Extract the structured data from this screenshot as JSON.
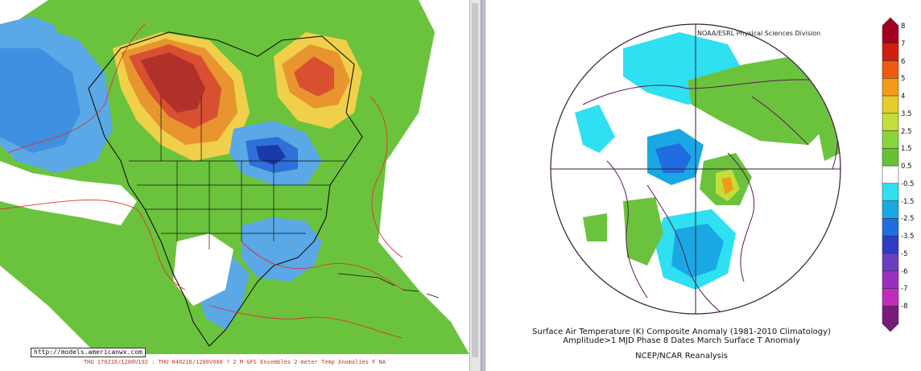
{
  "left_map": {
    "footer_text": "THU 170216/1200V192 : THU 840216/1200V000  ? 2 M GFS Ensembles 2-meter Temp Anomalies F NA",
    "source_url": "http://models.americanwx.com",
    "colors": {
      "dark_red": "#b0302a",
      "red": "#d8502f",
      "orange": "#e8952f",
      "yellow": "#f0d04a",
      "green": "#6bc33d",
      "light_blue": "#5aa8e6",
      "blue": "#2f70d8",
      "dark_blue": "#1a3aa8"
    }
  },
  "right_map": {
    "credit": "NOAA/ESRL Physical Sciences Division",
    "caption_line1": "Surface Air Temperature (K) Composite Anomaly (1981-2010 Climatology)",
    "caption_line2": "Amplitude>1 MJD Phase 8 Dates March Surface T Anomaly",
    "caption_line3": "NCEP/NCAR Reanalysis",
    "colorbar": {
      "labels": [
        "8",
        "7",
        "6",
        "5",
        "4",
        "3.5",
        "2.5",
        "1.5",
        "0.5",
        "-0.5",
        "-1.5",
        "-2.5",
        "-3.5",
        "-5",
        "-6",
        "-7",
        "-8"
      ],
      "colors": [
        "#a3001f",
        "#cf1f10",
        "#ee5a10",
        "#f39a16",
        "#e6cb2c",
        "#c2de3a",
        "#8bd33d",
        "#66c233",
        "#ffffff",
        "#2ee0f2",
        "#1aa8e4",
        "#1f6de0",
        "#2c3bc8",
        "#6a3ec2",
        "#9a2fbf",
        "#c22bbd",
        "#7a1a7a"
      ]
    }
  }
}
